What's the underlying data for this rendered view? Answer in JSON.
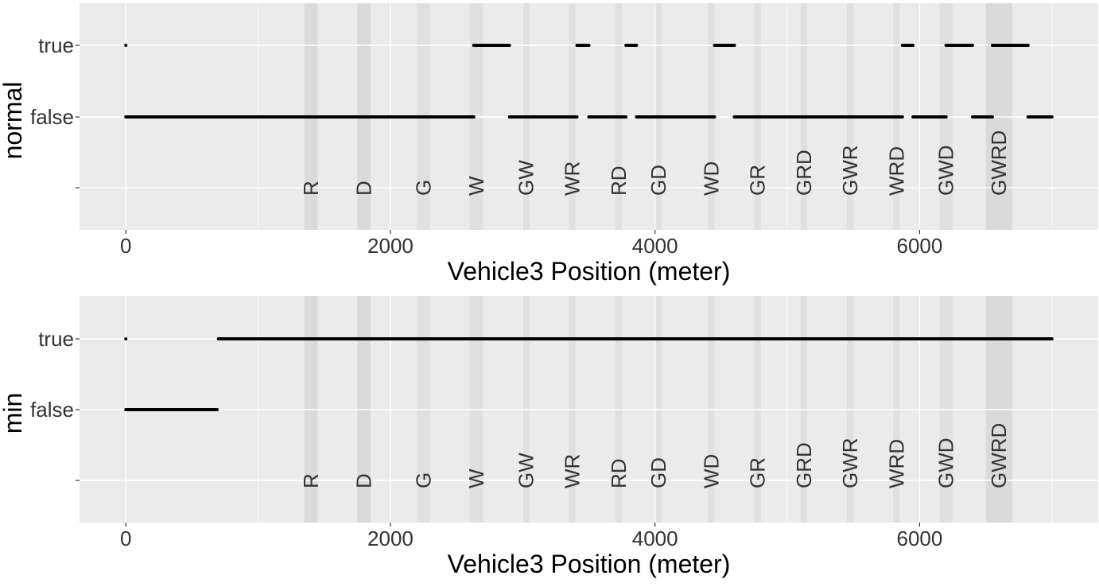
{
  "chart_data": [
    {
      "type": "scatter",
      "ylabel": "normal",
      "xlabel": "Vehicle3 Position (meter)",
      "xlim": [
        -350,
        7350
      ],
      "x_ticks": [
        0,
        2000,
        4000,
        6000
      ],
      "y_categories": [
        "",
        "false",
        "true"
      ],
      "grid": true,
      "zones": [
        {
          "label": "R",
          "x": [
            1350,
            1450
          ]
        },
        {
          "label": "D",
          "x": [
            1750,
            1850
          ]
        },
        {
          "label": "G",
          "x": [
            2200,
            2300
          ]
        },
        {
          "label": "W",
          "x": [
            2600,
            2700
          ]
        },
        {
          "label": "GW",
          "x": [
            3000,
            3050
          ]
        },
        {
          "label": "WR",
          "x": [
            3350,
            3400
          ]
        },
        {
          "label": "RD",
          "x": [
            3700,
            3750
          ]
        },
        {
          "label": "GD",
          "x": [
            4000,
            4050
          ]
        },
        {
          "label": "WD",
          "x": [
            4400,
            4450
          ]
        },
        {
          "label": "GR",
          "x": [
            4750,
            4800
          ]
        },
        {
          "label": "GRD",
          "x": [
            5100,
            5150
          ]
        },
        {
          "label": "GWR",
          "x": [
            5450,
            5500
          ]
        },
        {
          "label": "WRD",
          "x": [
            5800,
            5850
          ]
        },
        {
          "label": "GWD",
          "x": [
            6150,
            6250
          ]
        },
        {
          "label": "GWRD",
          "x": [
            6500,
            6700
          ]
        }
      ],
      "series": [
        {
          "value": "true",
          "ranges": [
            [
              0,
              5
            ],
            [
              2630,
              2900
            ],
            [
              3410,
              3500
            ],
            [
              3780,
              3860
            ],
            [
              4450,
              4600
            ],
            [
              5870,
              5950
            ],
            [
              6200,
              6400
            ],
            [
              6550,
              6820
            ]
          ]
        },
        {
          "value": "false",
          "ranges": [
            [
              0,
              2630
            ],
            [
              2900,
              3410
            ],
            [
              3500,
              3780
            ],
            [
              3860,
              4450
            ],
            [
              4600,
              5870
            ],
            [
              5950,
              6200
            ],
            [
              6400,
              6550
            ],
            [
              6820,
              7000
            ]
          ]
        }
      ]
    },
    {
      "type": "scatter",
      "ylabel": "min",
      "xlabel": "Vehicle3 Position (meter)",
      "xlim": [
        -350,
        7350
      ],
      "x_ticks": [
        0,
        2000,
        4000,
        6000
      ],
      "y_categories": [
        "",
        "false",
        "true"
      ],
      "grid": true,
      "zones": [
        {
          "label": "R",
          "x": [
            1350,
            1450
          ]
        },
        {
          "label": "D",
          "x": [
            1750,
            1850
          ]
        },
        {
          "label": "G",
          "x": [
            2200,
            2300
          ]
        },
        {
          "label": "W",
          "x": [
            2600,
            2700
          ]
        },
        {
          "label": "GW",
          "x": [
            3000,
            3050
          ]
        },
        {
          "label": "WR",
          "x": [
            3350,
            3400
          ]
        },
        {
          "label": "RD",
          "x": [
            3700,
            3750
          ]
        },
        {
          "label": "GD",
          "x": [
            4000,
            4050
          ]
        },
        {
          "label": "WD",
          "x": [
            4400,
            4450
          ]
        },
        {
          "label": "GR",
          "x": [
            4750,
            4800
          ]
        },
        {
          "label": "GRD",
          "x": [
            5100,
            5150
          ]
        },
        {
          "label": "GWR",
          "x": [
            5450,
            5500
          ]
        },
        {
          "label": "WRD",
          "x": [
            5800,
            5850
          ]
        },
        {
          "label": "GWD",
          "x": [
            6150,
            6250
          ]
        },
        {
          "label": "GWRD",
          "x": [
            6500,
            6700
          ]
        }
      ],
      "series": [
        {
          "value": "true",
          "ranges": [
            [
              0,
              5
            ],
            [
              700,
              7000
            ]
          ]
        },
        {
          "value": "false",
          "ranges": [
            [
              0,
              690
            ]
          ]
        }
      ]
    }
  ],
  "colors": {
    "panel": "#EBEBEB",
    "zone": "#E0E0E0",
    "zone_dark": "#DADADA",
    "grid": "#FFFFFF",
    "points": "#000000",
    "text": "#333333",
    "title": "#000000"
  }
}
